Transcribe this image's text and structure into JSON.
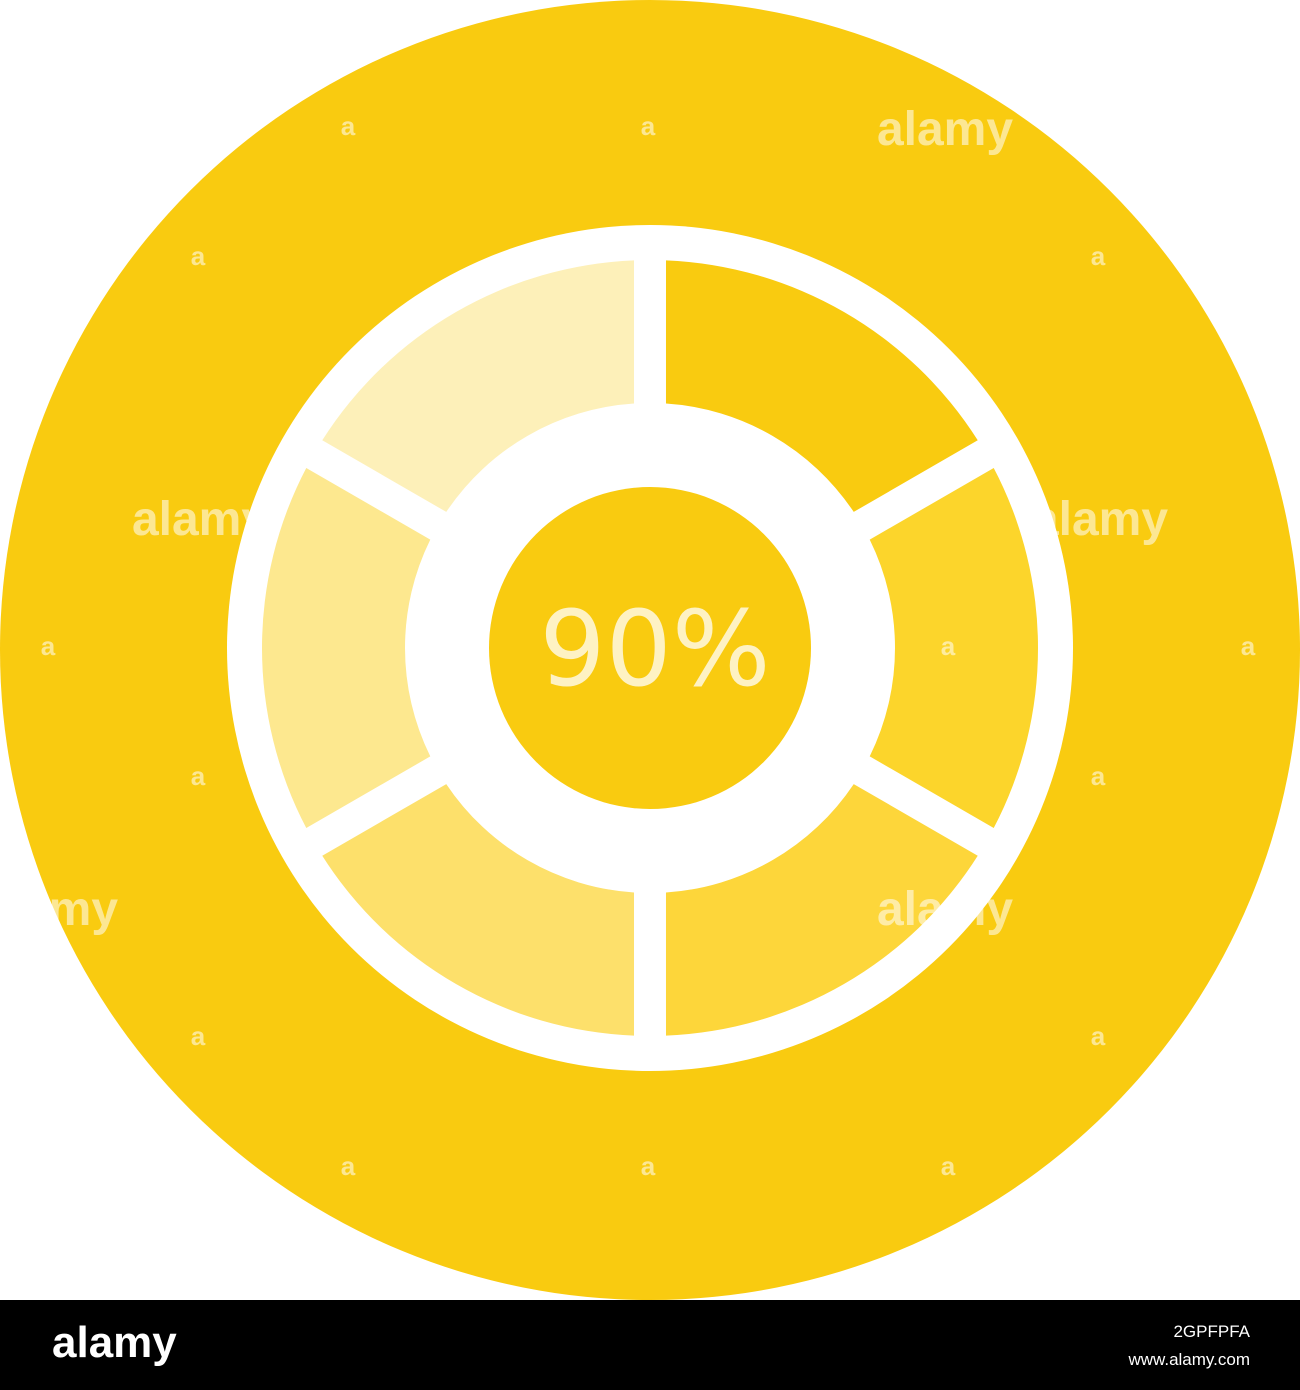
{
  "icon": {
    "label": "90%"
  },
  "watermark": {
    "word": "alamy",
    "mark": "a"
  },
  "footer": {
    "logo": "alamy",
    "image_id": "2GPFPFA",
    "url": "www.alamy.com"
  }
}
